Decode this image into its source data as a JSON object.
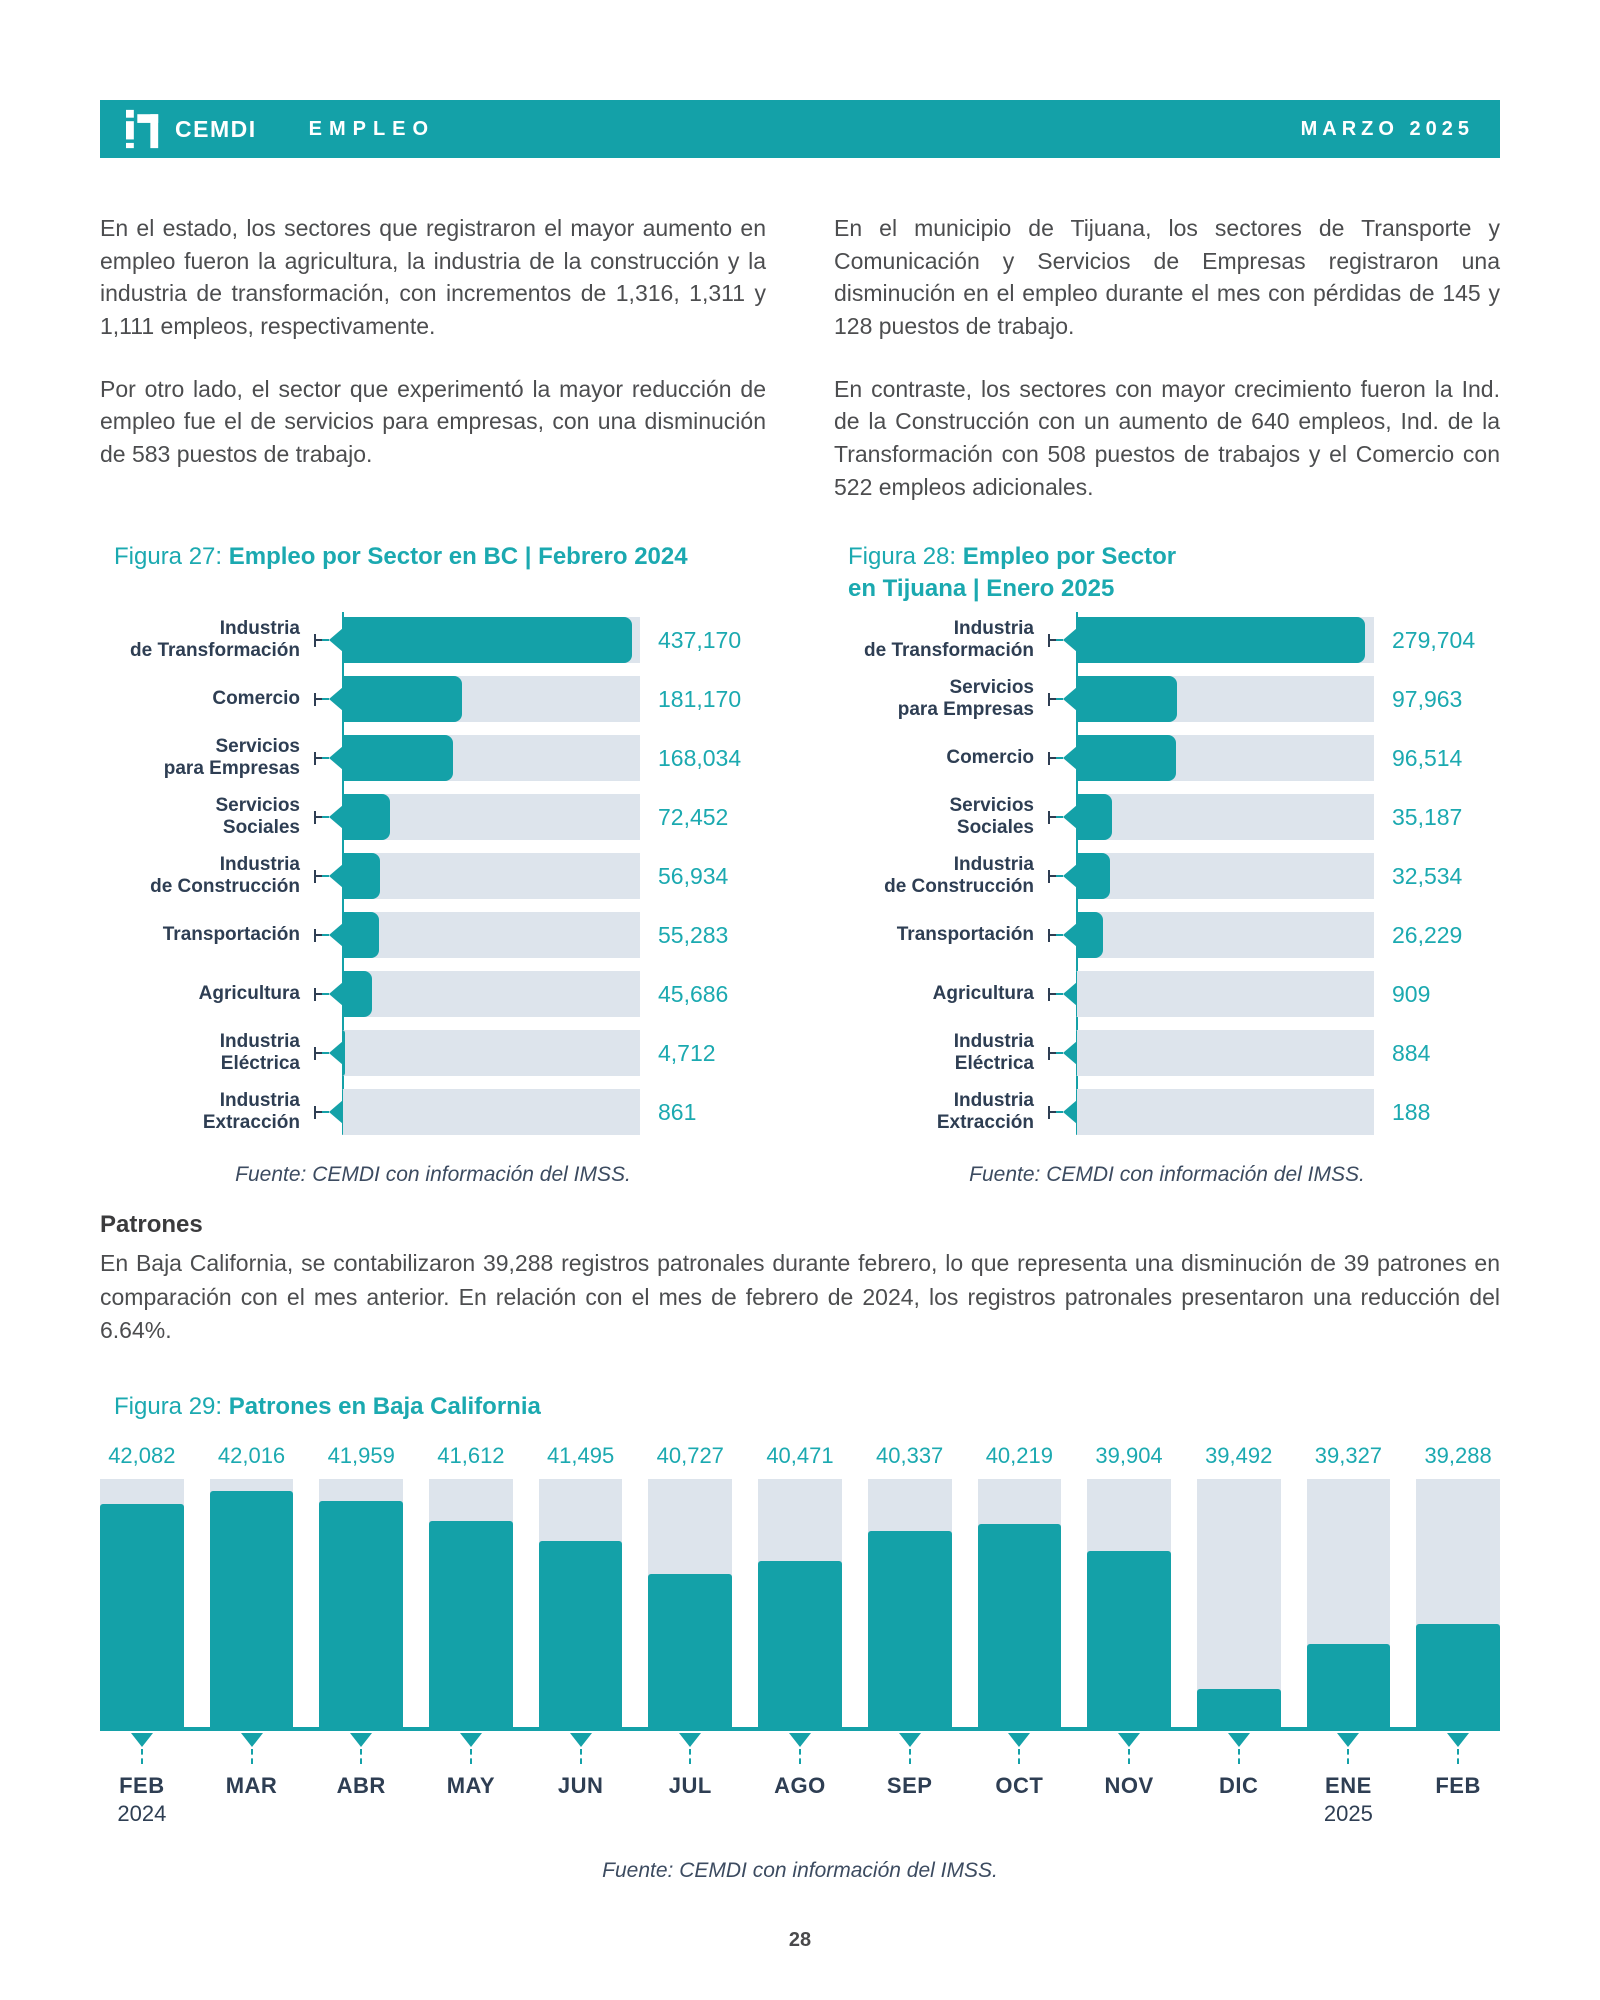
{
  "page": {
    "number": "28"
  },
  "header": {
    "brand": "CEMDI",
    "section": "EMPLEO",
    "issue": "MARZO 2025",
    "band_color": "#14a1a8"
  },
  "intro": {
    "left_p1": "En el estado, los sectores que registraron el mayor aumento en empleo fueron la agricultura, la industria de la construcción y la industria de transformación, con incrementos de 1,316, 1,311 y 1,111 empleos, respectivamente.",
    "left_p2": "Por otro lado, el sector que experimentó la mayor reducción de empleo fue el de servicios para empresas, con una disminución de 583 puestos de trabajo.",
    "right_p1": "En el municipio de Tijuana, los sectores de Transporte y Comunicación y Servicios de Empresas registraron una disminución en el empleo durante el mes con pérdidas de 145 y 128 puestos de trabajo.",
    "right_p2": "En contraste, los sectores con mayor crecimiento fueron la Ind. de la Construcción con un aumento de 640 empleos, Ind. de la Transformación con 508 puestos de trabajos y el Comercio con 522 empleos adicionales."
  },
  "figures": {
    "fig27": {
      "prefix": "Figura 27: ",
      "title": "Empleo por Sector en BC | Febrero 2024",
      "source": "Fuente: CEMDI con información del IMSS.",
      "scale_max": 450000,
      "rows": [
        {
          "label": "Industria\nde Transformación",
          "value": "437,170",
          "num": 437170
        },
        {
          "label": "Comercio",
          "value": "181,170",
          "num": 181170
        },
        {
          "label": "Servicios\npara Empresas",
          "value": "168,034",
          "num": 168034
        },
        {
          "label": "Servicios\nSociales",
          "value": "72,452",
          "num": 72452
        },
        {
          "label": "Industria\nde Construcción",
          "value": "56,934",
          "num": 56934
        },
        {
          "label": "Transportación",
          "value": "55,283",
          "num": 55283
        },
        {
          "label": "Agricultura",
          "value": "45,686",
          "num": 45686
        },
        {
          "label": "Industria\nEléctrica",
          "value": "4,712",
          "num": 4712
        },
        {
          "label": "Industria\nExtracción",
          "value": "861",
          "num": 861
        }
      ]
    },
    "fig28": {
      "prefix": "Figura 28: ",
      "title_line1": "Empleo por Sector",
      "title_line2": "en Tijuana | Enero 2025",
      "source": "Fuente: CEMDI con información del IMSS.",
      "scale_max": 288000,
      "rows": [
        {
          "label": "Industria\nde Transformación",
          "value": "279,704",
          "num": 279704
        },
        {
          "label": "Servicios\npara Empresas",
          "value": "97,963",
          "num": 97963
        },
        {
          "label": "Comercio",
          "value": "96,514",
          "num": 96514
        },
        {
          "label": "Servicios\nSociales",
          "value": "35,187",
          "num": 35187
        },
        {
          "label": "Industria\nde Construcción",
          "value": "32,534",
          "num": 32534
        },
        {
          "label": "Transportación",
          "value": "26,229",
          "num": 26229
        },
        {
          "label": "Agricultura",
          "value": "909",
          "num": 909
        },
        {
          "label": "Industria\nEléctrica",
          "value": "884",
          "num": 884
        },
        {
          "label": "Industria\nExtracción",
          "value": "188",
          "num": 188
        }
      ]
    },
    "patrones": {
      "heading": "Patrones",
      "body": "En Baja California, se contabilizaron 39,288 registros patronales durante febrero, lo que representa una disminución de 39 patrones en comparación con el mes anterior. En relación con el mes de febrero de 2024, los registros patronales presentaron una reducción del 6.64%."
    },
    "fig29": {
      "prefix": "Figura 29: ",
      "title": "Patrones en Baja California",
      "source": "Fuente: CEMDI con información del IMSS.",
      "bars": [
        {
          "value": "42,082",
          "num": 42082,
          "month": "FEB",
          "year": "2024",
          "fill": 0.9
        },
        {
          "value": "42,016",
          "num": 42016,
          "month": "MAR",
          "year": "",
          "fill": 0.95
        },
        {
          "value": "41,959",
          "num": 41959,
          "month": "ABR",
          "year": "",
          "fill": 0.91
        },
        {
          "value": "41,612",
          "num": 41612,
          "month": "MAY",
          "year": "",
          "fill": 0.83
        },
        {
          "value": "41,495",
          "num": 41495,
          "month": "JUN",
          "year": "",
          "fill": 0.75
        },
        {
          "value": "40,727",
          "num": 40727,
          "month": "JUL",
          "year": "",
          "fill": 0.62
        },
        {
          "value": "40,471",
          "num": 40471,
          "month": "AGO",
          "year": "",
          "fill": 0.67
        },
        {
          "value": "40,337",
          "num": 40337,
          "month": "SEP",
          "year": "",
          "fill": 0.79
        },
        {
          "value": "40,219",
          "num": 40219,
          "month": "OCT",
          "year": "",
          "fill": 0.82
        },
        {
          "value": "39,904",
          "num": 39904,
          "month": "NOV",
          "year": "",
          "fill": 0.71
        },
        {
          "value": "39,492",
          "num": 39492,
          "month": "DIC",
          "year": "",
          "fill": 0.16
        },
        {
          "value": "39,327",
          "num": 39327,
          "month": "ENE",
          "year": "2025",
          "fill": 0.34
        },
        {
          "value": "39,288",
          "num": 39288,
          "month": "FEB",
          "year": "",
          "fill": 0.42
        }
      ]
    }
  },
  "chart_data": [
    {
      "id": "figura-27",
      "type": "bar",
      "orientation": "horizontal",
      "title": "Empleo por Sector en BC | Febrero 2024",
      "categories": [
        "Industria de Transformación",
        "Comercio",
        "Servicios para Empresas",
        "Servicios Sociales",
        "Industria de Construcción",
        "Transportación",
        "Agricultura",
        "Industria Eléctrica",
        "Industria Extracción"
      ],
      "values": [
        437170,
        181170,
        168034,
        72452,
        56934,
        55283,
        45686,
        4712,
        861
      ],
      "value_labels": [
        "437,170",
        "181,170",
        "168,034",
        "72,452",
        "56,934",
        "55,283",
        "45,686",
        "4,712",
        "861"
      ],
      "bar_color": "#14a1a8",
      "track_color": "#dde4ec",
      "source": "Fuente: CEMDI con información del IMSS."
    },
    {
      "id": "figura-28",
      "type": "bar",
      "orientation": "horizontal",
      "title": "Empleo por Sector en Tijuana | Enero 2025",
      "categories": [
        "Industria de Transformación",
        "Servicios para Empresas",
        "Comercio",
        "Servicios Sociales",
        "Industria de Construcción",
        "Transportación",
        "Agricultura",
        "Industria Eléctrica",
        "Industria Extracción"
      ],
      "values": [
        279704,
        97963,
        96514,
        35187,
        32534,
        26229,
        909,
        884,
        188
      ],
      "value_labels": [
        "279,704",
        "97,963",
        "96,514",
        "35,187",
        "32,534",
        "26,229",
        "909",
        "884",
        "188"
      ],
      "bar_color": "#14a1a8",
      "track_color": "#dde4ec",
      "source": "Fuente: CEMDI con información del IMSS."
    },
    {
      "id": "figura-29",
      "type": "bar",
      "orientation": "vertical",
      "title": "Patrones en Baja California",
      "categories": [
        "FEB 2024",
        "MAR",
        "ABR",
        "MAY",
        "JUN",
        "JUL",
        "AGO",
        "SEP",
        "OCT",
        "NOV",
        "DIC",
        "ENE 2025",
        "FEB"
      ],
      "values": [
        42082,
        42016,
        41959,
        41612,
        41495,
        40727,
        40471,
        40337,
        40219,
        39904,
        39492,
        39327,
        39288
      ],
      "value_labels": [
        "42,082",
        "42,016",
        "41,959",
        "41,612",
        "41,495",
        "40,727",
        "40,471",
        "40,337",
        "40,219",
        "39,904",
        "39,492",
        "39,327",
        "39,288"
      ],
      "bar_fill_fractions_observed": [
        0.9,
        0.95,
        0.91,
        0.83,
        0.75,
        0.62,
        0.67,
        0.79,
        0.82,
        0.71,
        0.16,
        0.34,
        0.42
      ],
      "note": "Teal fill heights are stylized in the original figure and not proportional to the labeled values.",
      "bar_color": "#14a1a8",
      "track_color": "#dde4ec",
      "source": "Fuente: CEMDI con información del IMSS."
    }
  ]
}
